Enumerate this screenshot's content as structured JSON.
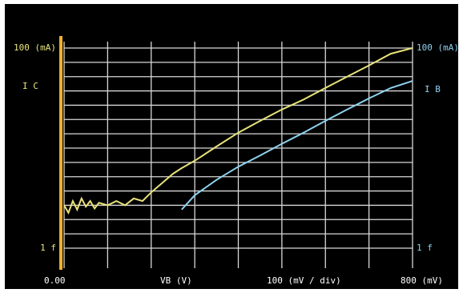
{
  "chart_data": {
    "type": "line",
    "y_scale": "log",
    "grid": true,
    "background": "#000000",
    "y_axis_label": "I C",
    "y2_axis_label": "I B",
    "x_axis_label": "VB (V)",
    "annotation": "100 (mV / div)",
    "x": [
      0,
      0.01,
      0.02,
      0.03,
      0.04,
      0.05,
      0.06,
      0.07,
      0.08,
      0.1,
      0.12,
      0.14,
      0.16,
      0.18,
      0.2,
      0.25,
      0.27,
      0.3,
      0.35,
      0.4,
      0.45,
      0.5,
      0.55,
      0.6,
      0.65,
      0.7,
      0.75,
      0.8
    ],
    "series": [
      {
        "name": "I C",
        "color": "#e8e27a",
        "axis": "y",
        "values": [
          1e-12,
          3e-13,
          2e-12,
          5e-13,
          3e-12,
          8e-13,
          2e-12,
          6e-13,
          1.5e-12,
          1e-12,
          2e-12,
          1e-12,
          3e-12,
          2e-12,
          8e-12,
          1.6e-10,
          4e-10,
          1.3e-09,
          1.3e-08,
          1.2e-07,
          8e-07,
          5e-06,
          2.5e-05,
          0.00016,
          0.001,
          0.006,
          0.04,
          0.1
        ]
      },
      {
        "name": "I B",
        "color": "#8fd3f0",
        "axis": "y2",
        "values": [
          null,
          null,
          null,
          null,
          null,
          null,
          null,
          null,
          null,
          null,
          null,
          null,
          null,
          null,
          null,
          null,
          5e-13,
          5e-12,
          6e-11,
          5e-10,
          3e-09,
          2e-08,
          1.2e-07,
          8e-07,
          5e-06,
          3e-05,
          0.00016,
          0.0005
        ]
      }
    ],
    "xlim": [
      0,
      0.8
    ],
    "xticks": [
      {
        "value": 0,
        "label": "0.00"
      },
      {
        "value": 0.8,
        "label": "800 (mV)"
      }
    ],
    "ylim": [
      1e-15,
      0.1
    ],
    "yticks": [
      {
        "value": 0.1,
        "label": "100 (mA)"
      },
      {
        "value": 1e-15,
        "label": "1 f"
      }
    ],
    "y2lim": [
      1e-15,
      0.1
    ],
    "y2ticks": [
      {
        "value": 0.1,
        "label": "100 (mA)"
      },
      {
        "value": 1e-15,
        "label": "1 f"
      }
    ]
  }
}
